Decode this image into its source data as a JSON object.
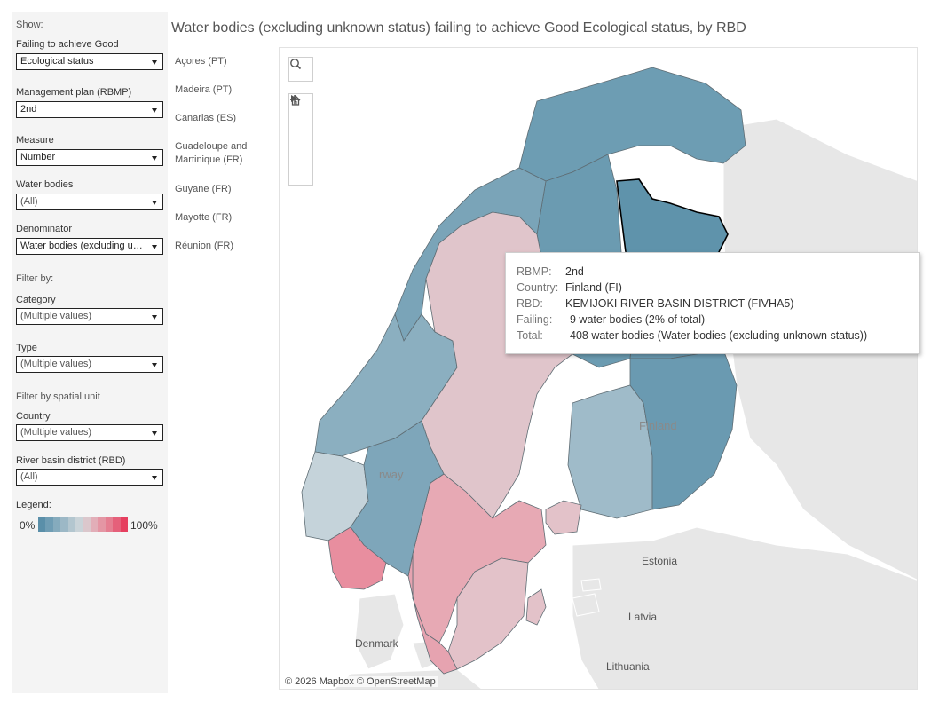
{
  "title": "Water bodies (excluding unknown status)  failing to achieve Good Ecological status, by RBD",
  "panel": {
    "show_label": "Show:",
    "failing_label": "Failing to achieve Good",
    "failing_value": "Ecological status",
    "rbmp_label": "Management plan (RBMP)",
    "rbmp_value": "2nd",
    "measure_label": "Measure",
    "measure_value": "Number",
    "waterbodies_label": "Water bodies",
    "waterbodies_value": "(All)",
    "denominator_label": "Denominator",
    "denominator_value": "Water bodies (excluding unknown status)",
    "filter_label": "Filter by:",
    "category_label": "Category",
    "category_value": "(Multiple values)",
    "type_label": "Type",
    "type_value": "(Multiple values)",
    "spatial_label": "Filter by spatial unit",
    "country_label": "Country",
    "country_value": "(Multiple values)",
    "rbd_label": "River basin district (RBD)",
    "rbd_value": "(All)",
    "legend_label": "Legend:",
    "legend_min": "0%",
    "legend_max": "100%",
    "legend_colors": [
      "#5a8fa9",
      "#6f9db4",
      "#85abbd",
      "#9cb8c6",
      "#b3c6cf",
      "#c9d3d8",
      "#dbc7cc",
      "#e2aeb8",
      "#e496a4",
      "#e57e91",
      "#e5607a",
      "#e63f5f"
    ]
  },
  "regions": [
    "Açores (PT)",
    "Madeira (PT)",
    "Canarias (ES)",
    "Guadeloupe and Martinique (FR)",
    "Guyane (FR)",
    "Mayotte (FR)",
    "Réunion (FR)"
  ],
  "map": {
    "attribution": "© 2026 Mapbox  © OpenStreetMap",
    "labels": {
      "finland": "Finland",
      "norway": "rway",
      "estonia": "Estonia",
      "latvia": "Latvia",
      "lithuania": "Lithuania",
      "denmark": "Denmark"
    },
    "colors": {
      "sea": "#ffffff",
      "land": "#e7e7e7",
      "border": "#ffffff",
      "rbd_outline": "#5f6d74",
      "selected_outline": "#000000"
    },
    "rbds": [
      {
        "id": "NO-FINNMARK",
        "color": "#6d9db3"
      },
      {
        "id": "SE-BOTHNIAN-BAY",
        "color": "#6b9bb1"
      },
      {
        "id": "FI-KEMIJOKI",
        "color": "#5f93ab"
      },
      {
        "id": "FI-OULUJOKI",
        "color": "#6a9ab1"
      },
      {
        "id": "FI-KOKEMAENJOKI",
        "color": "#9fbbc9"
      },
      {
        "id": "FI-VUOKSI",
        "color": "#6a9ab1"
      },
      {
        "id": "NO-NORDLAND",
        "color": "#7aa4b8"
      },
      {
        "id": "NO-TRONDELAG",
        "color": "#8bafc0"
      },
      {
        "id": "SE-BOTHNIAN-SEA",
        "color": "#e0c5cb"
      },
      {
        "id": "SE-NORTH-BALTIC",
        "color": "#e7a9b4"
      },
      {
        "id": "SE-SOUTH-BALTIC",
        "color": "#e3c2c9"
      },
      {
        "id": "SE-SKAGERRAK",
        "color": "#e6a3b0"
      },
      {
        "id": "NO-WEST",
        "color": "#c5d3da"
      },
      {
        "id": "NO-SOUTHEAST",
        "color": "#7ea6ba"
      },
      {
        "id": "NO-AGDER",
        "color": "#e88e9f"
      },
      {
        "id": "FI-ALAND",
        "color": "#e3c2c9"
      },
      {
        "id": "SE-GOTLAND",
        "color": "#e3c2c9"
      }
    ]
  },
  "tooltip": {
    "rbmp_key": "RBMP:",
    "rbmp_val": "2nd",
    "country_key": "Country:",
    "country_val": "Finland (FI)",
    "rbd_key": "RBD:",
    "rbd_val": "KEMIJOKI RIVER BASIN DISTRICT (FIVHA5)",
    "failing_key": "Failing:",
    "failing_val": "9 water bodies (2% of total)",
    "total_key": "Total:",
    "total_val": "408 water bodies (Water bodies (excluding unknown status))"
  }
}
